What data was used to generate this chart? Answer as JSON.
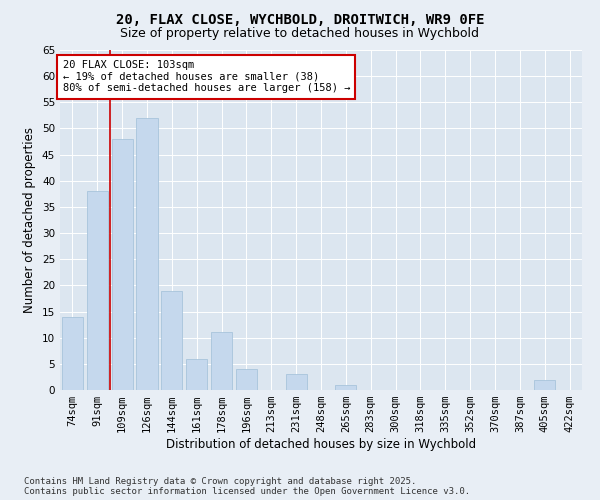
{
  "title_line1": "20, FLAX CLOSE, WYCHBOLD, DROITWICH, WR9 0FE",
  "title_line2": "Size of property relative to detached houses in Wychbold",
  "xlabel": "Distribution of detached houses by size in Wychbold",
  "ylabel": "Number of detached properties",
  "categories": [
    "74sqm",
    "91sqm",
    "109sqm",
    "126sqm",
    "144sqm",
    "161sqm",
    "178sqm",
    "196sqm",
    "213sqm",
    "231sqm",
    "248sqm",
    "265sqm",
    "283sqm",
    "300sqm",
    "318sqm",
    "335sqm",
    "352sqm",
    "370sqm",
    "387sqm",
    "405sqm",
    "422sqm"
  ],
  "values": [
    14,
    38,
    48,
    52,
    19,
    6,
    11,
    4,
    0,
    3,
    0,
    1,
    0,
    0,
    0,
    0,
    0,
    0,
    0,
    2,
    0
  ],
  "bar_color": "#c5d8ed",
  "bar_edge_color": "#a8c4dc",
  "vline_x": 1.5,
  "vline_color": "#cc0000",
  "annotation_text": "20 FLAX CLOSE: 103sqm\n← 19% of detached houses are smaller (38)\n80% of semi-detached houses are larger (158) →",
  "annotation_box_color": "#ffffff",
  "annotation_box_edge": "#cc0000",
  "ylim": [
    0,
    65
  ],
  "yticks": [
    0,
    5,
    10,
    15,
    20,
    25,
    30,
    35,
    40,
    45,
    50,
    55,
    60,
    65
  ],
  "bg_color": "#e8eef5",
  "plot_bg_color": "#dce6f0",
  "footer_text": "Contains HM Land Registry data © Crown copyright and database right 2025.\nContains public sector information licensed under the Open Government Licence v3.0.",
  "title_fontsize": 10,
  "subtitle_fontsize": 9,
  "axis_label_fontsize": 8.5,
  "tick_fontsize": 7.5,
  "annotation_fontsize": 7.5,
  "footer_fontsize": 6.5
}
